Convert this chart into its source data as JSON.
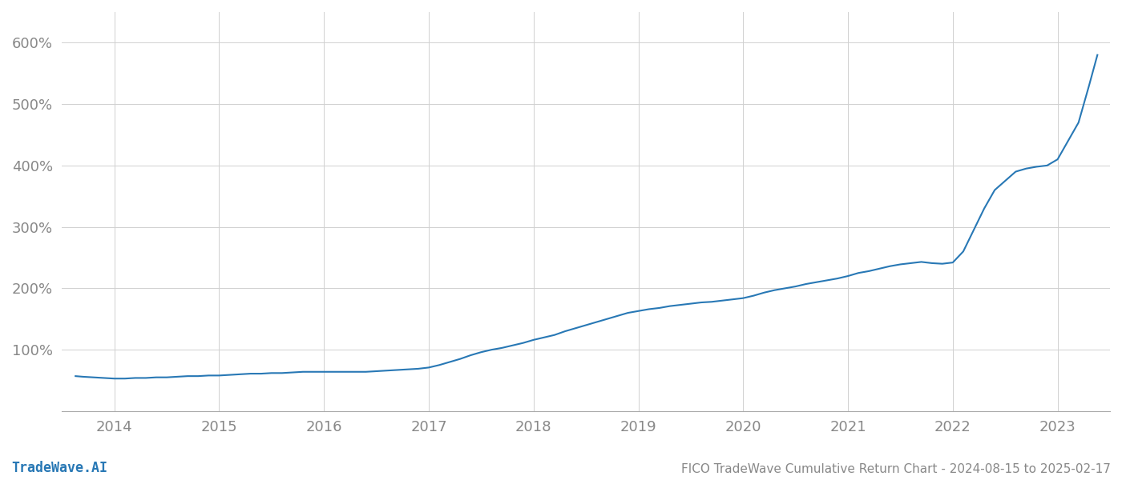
{
  "title": "FICO TradeWave Cumulative Return Chart - 2024-08-15 to 2025-02-17",
  "watermark": "TradeWave.AI",
  "line_color": "#2878b5",
  "line_width": 1.5,
  "background_color": "#ffffff",
  "grid_color": "#d0d0d0",
  "x_tick_labels": [
    "2014",
    "2015",
    "2016",
    "2017",
    "2018",
    "2019",
    "2020",
    "2021",
    "2022",
    "2023"
  ],
  "x_tick_positions": [
    2014,
    2015,
    2016,
    2017,
    2018,
    2019,
    2020,
    2021,
    2022,
    2023
  ],
  "y_tick_labels": [
    "100%",
    "200%",
    "300%",
    "400%",
    "500%",
    "600%"
  ],
  "y_tick_positions": [
    100,
    200,
    300,
    400,
    500,
    600
  ],
  "ylim": [
    0,
    650
  ],
  "xlim": [
    2013.5,
    2023.5
  ],
  "data_x": [
    2013.63,
    2013.7,
    2013.8,
    2013.9,
    2014.0,
    2014.1,
    2014.2,
    2014.3,
    2014.4,
    2014.5,
    2014.6,
    2014.7,
    2014.8,
    2014.9,
    2015.0,
    2015.1,
    2015.2,
    2015.3,
    2015.4,
    2015.5,
    2015.6,
    2015.7,
    2015.8,
    2015.9,
    2016.0,
    2016.1,
    2016.2,
    2016.3,
    2016.4,
    2016.5,
    2016.6,
    2016.7,
    2016.8,
    2016.9,
    2017.0,
    2017.1,
    2017.2,
    2017.3,
    2017.4,
    2017.5,
    2017.6,
    2017.7,
    2017.8,
    2017.9,
    2018.0,
    2018.1,
    2018.2,
    2018.3,
    2018.4,
    2018.5,
    2018.6,
    2018.7,
    2018.8,
    2018.9,
    2019.0,
    2019.1,
    2019.2,
    2019.3,
    2019.4,
    2019.5,
    2019.6,
    2019.7,
    2019.8,
    2019.9,
    2020.0,
    2020.1,
    2020.2,
    2020.3,
    2020.4,
    2020.5,
    2020.6,
    2020.7,
    2020.8,
    2020.9,
    2021.0,
    2021.1,
    2021.2,
    2021.3,
    2021.4,
    2021.5,
    2021.6,
    2021.7,
    2021.8,
    2021.9,
    2022.0,
    2022.1,
    2022.2,
    2022.3,
    2022.4,
    2022.5,
    2022.6,
    2022.7,
    2022.8,
    2022.9,
    2023.0,
    2023.1,
    2023.2,
    2023.3,
    2023.38
  ],
  "data_y": [
    57,
    56,
    55,
    54,
    53,
    53,
    54,
    54,
    55,
    55,
    56,
    57,
    57,
    58,
    58,
    59,
    60,
    61,
    61,
    62,
    62,
    63,
    64,
    64,
    64,
    64,
    64,
    64,
    64,
    65,
    66,
    67,
    68,
    69,
    71,
    75,
    80,
    85,
    91,
    96,
    100,
    103,
    107,
    111,
    116,
    120,
    124,
    130,
    135,
    140,
    145,
    150,
    155,
    160,
    163,
    166,
    168,
    171,
    173,
    175,
    177,
    178,
    180,
    182,
    184,
    188,
    193,
    197,
    200,
    203,
    207,
    210,
    213,
    216,
    220,
    225,
    228,
    232,
    236,
    239,
    241,
    243,
    241,
    240,
    242,
    260,
    295,
    330,
    360,
    375,
    390,
    395,
    398,
    400,
    410,
    440,
    470,
    530,
    580
  ]
}
